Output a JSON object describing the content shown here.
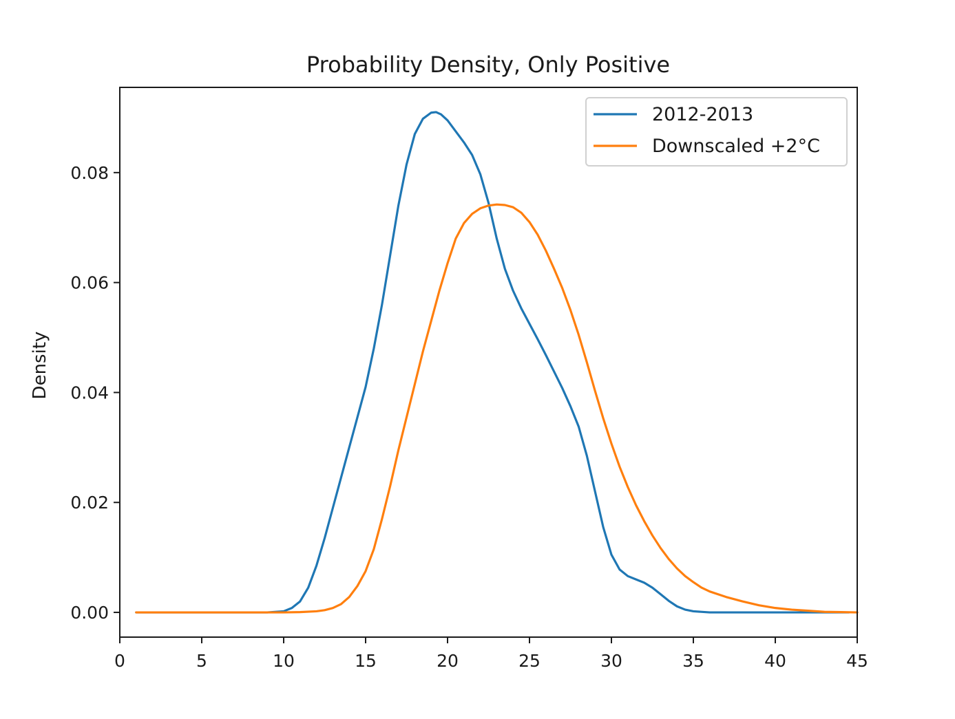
{
  "chart_data": {
    "type": "line",
    "title": "Probability Density, Only Positive",
    "xlabel": "",
    "ylabel": "Density",
    "xlim": [
      0,
      45
    ],
    "ylim": [
      -0.0045,
      0.0955
    ],
    "xticks": [
      0,
      5,
      10,
      15,
      20,
      25,
      30,
      35,
      40,
      45
    ],
    "xtick_labels": [
      "0",
      "5",
      "10",
      "15",
      "20",
      "25",
      "30",
      "35",
      "40",
      "45"
    ],
    "yticks": [
      0.0,
      0.02,
      0.04,
      0.06,
      0.08
    ],
    "ytick_labels": [
      "0.00",
      "0.02",
      "0.04",
      "0.06",
      "0.08"
    ],
    "grid": false,
    "legend_position": "top-right",
    "series": [
      {
        "name": "2012-2013",
        "color": "#1f77b4",
        "x": [
          1.0,
          5,
          9,
          10,
          10.5,
          11,
          11.5,
          12,
          12.5,
          13,
          13.5,
          14,
          14.5,
          15,
          15.5,
          16,
          16.5,
          17,
          17.5,
          18,
          18.5,
          19,
          19.3,
          19.6,
          20,
          20.5,
          21,
          21.5,
          22,
          22.5,
          23,
          23.5,
          24,
          24.5,
          25,
          25.5,
          26,
          26.5,
          27,
          27.5,
          28,
          28.5,
          29,
          29.5,
          30,
          30.5,
          31,
          31.5,
          32,
          32.5,
          33,
          33.5,
          34,
          34.5,
          35,
          36,
          38,
          40,
          42,
          44.5
        ],
        "y": [
          0.0,
          0.0,
          0.0,
          0.0002,
          0.0008,
          0.002,
          0.0045,
          0.0085,
          0.0135,
          0.019,
          0.0245,
          0.03,
          0.0355,
          0.041,
          0.048,
          0.056,
          0.065,
          0.074,
          0.0815,
          0.087,
          0.0898,
          0.0909,
          0.091,
          0.0906,
          0.0895,
          0.0875,
          0.0855,
          0.0832,
          0.0797,
          0.0745,
          0.068,
          0.0625,
          0.0585,
          0.0553,
          0.0525,
          0.0497,
          0.0468,
          0.0438,
          0.0408,
          0.0375,
          0.0338,
          0.0285,
          0.022,
          0.0155,
          0.0105,
          0.0078,
          0.0066,
          0.006,
          0.0054,
          0.0045,
          0.0033,
          0.0021,
          0.0011,
          0.0005,
          0.0002,
          0.0,
          0.0,
          0.0,
          0.0,
          0.0
        ]
      },
      {
        "name": "Downscaled +2°C",
        "color": "#ff7f0e",
        "x": [
          1.0,
          5,
          10,
          11,
          12,
          12.5,
          13,
          13.5,
          14,
          14.5,
          15,
          15.5,
          16,
          16.5,
          17,
          17.5,
          18,
          18.5,
          19,
          19.5,
          20,
          20.5,
          21,
          21.5,
          22,
          22.5,
          23,
          23.5,
          24,
          24.5,
          25,
          25.5,
          26,
          26.5,
          27,
          27.5,
          28,
          28.5,
          29,
          29.5,
          30,
          30.5,
          31,
          31.5,
          32,
          32.5,
          33,
          33.5,
          34,
          34.5,
          35,
          35.5,
          36,
          37,
          38,
          39,
          40,
          41,
          42,
          43,
          44,
          45
        ],
        "y": [
          0.0,
          0.0,
          0.0,
          5e-05,
          0.0002,
          0.0004,
          0.0008,
          0.0015,
          0.0028,
          0.0048,
          0.0075,
          0.0115,
          0.017,
          0.023,
          0.0295,
          0.0355,
          0.0415,
          0.0475,
          0.053,
          0.0585,
          0.0635,
          0.068,
          0.0708,
          0.0725,
          0.0735,
          0.074,
          0.0742,
          0.0741,
          0.0737,
          0.0727,
          0.071,
          0.0687,
          0.0658,
          0.0625,
          0.059,
          0.055,
          0.0505,
          0.0455,
          0.0403,
          0.0353,
          0.0307,
          0.0265,
          0.0228,
          0.0195,
          0.0166,
          0.014,
          0.0117,
          0.0097,
          0.008,
          0.0066,
          0.0055,
          0.0045,
          0.0038,
          0.0028,
          0.002,
          0.0013,
          0.0008,
          0.0005,
          0.0003,
          0.0001,
          5e-05,
          0.0
        ]
      }
    ]
  }
}
